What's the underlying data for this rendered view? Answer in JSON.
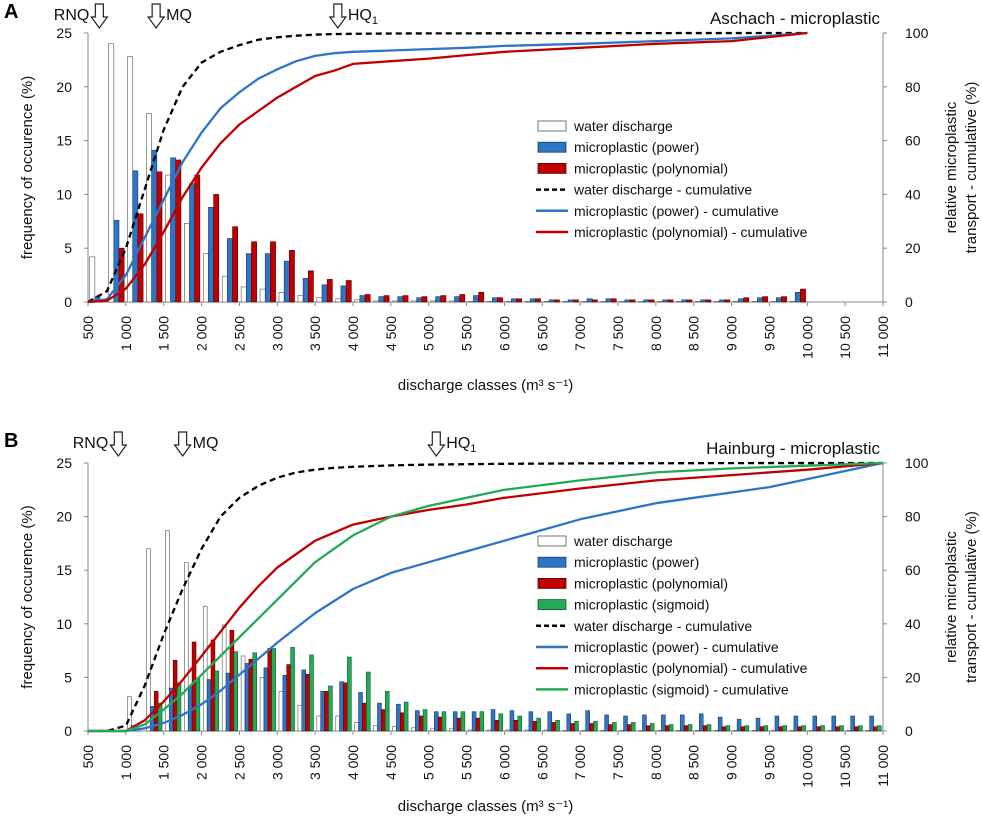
{
  "chart_data": [
    {
      "type": "bar+line",
      "panel_label": "A",
      "title": "Aschach - microplastic",
      "xlabel": "discharge classes (m³ s⁻¹)",
      "ylabel": "frequency of occurence  (%)",
      "y2label_line1": "relative microplastic",
      "y2label_line2": "transport - cumulative (%)",
      "ylim": [
        0,
        25
      ],
      "y2lim": [
        0,
        100
      ],
      "yticks": [
        "0",
        "5",
        "10",
        "15",
        "20",
        "25"
      ],
      "y2ticks": [
        "0",
        "20",
        "40",
        "60",
        "80",
        "100"
      ],
      "xlim": [
        500,
        11000
      ],
      "xtick_labels": [
        "500",
        "1 000",
        "1 500",
        "2 000",
        "2 500",
        "3 000",
        "3 500",
        "4 000",
        "4 500",
        "5 000",
        "5 500",
        "6 000",
        "6 500",
        "7 000",
        "7 500",
        "8 000",
        "8 500",
        "9 000",
        "9 500",
        "10 000",
        "10 500",
        "11 000"
      ],
      "markers": [
        {
          "label": "RNQ",
          "sub": "",
          "x": 650
        },
        {
          "label": "MQ",
          "sub": "",
          "x": 1400
        },
        {
          "label": "HQ",
          "sub": "1",
          "x": 3800
        }
      ],
      "bar_centers": [
        625,
        875,
        1125,
        1375,
        1625,
        1875,
        2125,
        2375,
        2625,
        2875,
        3125,
        3375,
        3625,
        3875,
        4125,
        4375,
        4625,
        4875,
        5125,
        5375,
        5625,
        5875,
        6125,
        6375,
        6625,
        6875,
        7125,
        7375,
        7625,
        7875,
        8125,
        8375,
        8625,
        8875,
        9125,
        9375,
        9625,
        9875
      ],
      "series": [
        {
          "name": "water discharge",
          "kind": "bar",
          "color": "#ffffff",
          "stroke": "#555555",
          "values": [
            4.2,
            24.0,
            22.8,
            17.5,
            11.8,
            7.3,
            4.5,
            2.4,
            1.4,
            1.2,
            0.9,
            0.6,
            0.4,
            0.3,
            0.2,
            0.1,
            0.1,
            0.1,
            0.1,
            0.1,
            0.05,
            0.05,
            0.05,
            0.05,
            0.05,
            0.05,
            0.05,
            0.05,
            0.05,
            0.05,
            0.05,
            0.05,
            0.05,
            0.05,
            0.05,
            0.05,
            0.05,
            0.05
          ]
        },
        {
          "name": "microplastic (power)",
          "kind": "bar",
          "color": "#2e75c5",
          "stroke": "#1a3d66",
          "values": [
            0.5,
            7.6,
            12.2,
            14.1,
            13.4,
            11.0,
            8.8,
            5.9,
            4.5,
            4.5,
            3.8,
            2.2,
            1.6,
            1.5,
            0.6,
            0.5,
            0.5,
            0.4,
            0.5,
            0.5,
            0.6,
            0.4,
            0.3,
            0.3,
            0.2,
            0.2,
            0.3,
            0.3,
            0.2,
            0.2,
            0.2,
            0.2,
            0.2,
            0.2,
            0.3,
            0.4,
            0.4,
            0.9
          ]
        },
        {
          "name": "microplastic (polynomial)",
          "kind": "bar",
          "color": "#c00000",
          "stroke": "#5a0000",
          "values": [
            0.2,
            5.0,
            8.2,
            12.1,
            13.2,
            11.8,
            10.0,
            7.0,
            5.6,
            5.6,
            4.8,
            2.9,
            2.1,
            2.0,
            0.7,
            0.6,
            0.6,
            0.5,
            0.6,
            0.7,
            0.9,
            0.4,
            0.3,
            0.3,
            0.2,
            0.2,
            0.2,
            0.3,
            0.2,
            0.2,
            0.2,
            0.2,
            0.2,
            0.2,
            0.4,
            0.5,
            0.5,
            1.2
          ]
        },
        {
          "name": "water discharge - cumulative",
          "kind": "line",
          "dash": true,
          "color": "#000000",
          "x": [
            500,
            750,
            1000,
            1250,
            1500,
            1750,
            2000,
            2250,
            2500,
            2750,
            3000,
            3250,
            3500,
            3750,
            4000,
            4500,
            5000,
            6000,
            8000,
            10000
          ],
          "values": [
            0,
            4,
            20,
            42,
            64,
            80,
            89,
            93,
            95.5,
            97.5,
            98.4,
            99.0,
            99.4,
            99.6,
            99.7,
            99.8,
            99.85,
            99.9,
            99.95,
            100
          ]
        },
        {
          "name": "microplastic (power) - cumulative",
          "kind": "line",
          "dash": false,
          "color": "#2e75c5",
          "x": [
            500,
            750,
            1000,
            1250,
            1500,
            1750,
            2000,
            2250,
            2500,
            2750,
            3000,
            3250,
            3500,
            3750,
            4000,
            4500,
            5000,
            5500,
            6000,
            7000,
            8000,
            9000,
            10000
          ],
          "values": [
            0,
            1,
            10,
            24,
            38,
            52,
            63,
            72,
            78,
            83,
            86.5,
            89.5,
            91.5,
            92.5,
            93.0,
            93.5,
            94.0,
            94.5,
            95.2,
            96.0,
            97.0,
            98.0,
            100
          ]
        },
        {
          "name": "microplastic (polynomial) - cumulative",
          "kind": "line",
          "dash": false,
          "color": "#c00000",
          "x": [
            500,
            750,
            1000,
            1250,
            1500,
            1750,
            2000,
            2250,
            2500,
            2750,
            3000,
            3250,
            3500,
            3750,
            4000,
            4500,
            5000,
            5500,
            6000,
            7000,
            8000,
            9000,
            10000
          ],
          "values": [
            0,
            0.5,
            5,
            14,
            26,
            39,
            50,
            59,
            66,
            71,
            76,
            80,
            84,
            86,
            88.5,
            89.5,
            90.5,
            91.8,
            93,
            94.5,
            96,
            97,
            100
          ]
        }
      ]
    },
    {
      "type": "bar+line",
      "panel_label": "B",
      "title": "Hainburg - microplastic",
      "xlabel": "discharge classes (m³ s⁻¹)",
      "ylabel": "frequency of occurence  (%)",
      "y2label_line1": "relative microplastic",
      "y2label_line2": "transport - cumulative (%)",
      "ylim": [
        0,
        25
      ],
      "y2lim": [
        0,
        100
      ],
      "yticks": [
        "0",
        "5",
        "10",
        "15",
        "20",
        "25"
      ],
      "y2ticks": [
        "0",
        "20",
        "40",
        "60",
        "80",
        "100"
      ],
      "xlim": [
        500,
        11000
      ],
      "xtick_labels": [
        "500",
        "1 000",
        "1 500",
        "2 000",
        "2 500",
        "3 000",
        "3 500",
        "4 000",
        "4 500",
        "5 000",
        "5 500",
        "6 000",
        "6 500",
        "7 000",
        "7 500",
        "8 000",
        "8 500",
        "9 000",
        "9 500",
        "10 000",
        "10 500",
        "11 000"
      ],
      "markers": [
        {
          "label": "RNQ",
          "sub": "",
          "x": 900
        },
        {
          "label": "MQ",
          "sub": "",
          "x": 1750
        },
        {
          "label": "HQ",
          "sub": "1",
          "x": 5100
        }
      ],
      "bar_centers": [
        625,
        875,
        1125,
        1375,
        1625,
        1875,
        2125,
        2375,
        2625,
        2875,
        3125,
        3375,
        3625,
        3875,
        4125,
        4375,
        4625,
        4875,
        5125,
        5375,
        5625,
        5875,
        6125,
        6375,
        6625,
        6875,
        7125,
        7375,
        7625,
        7875,
        8125,
        8375,
        8625,
        8875,
        9125,
        9375,
        9625,
        9875,
        10125,
        10375,
        10625,
        10875
      ],
      "series": [
        {
          "name": "water discharge",
          "kind": "bar",
          "color": "#ffffff",
          "stroke": "#555555",
          "values": [
            0,
            0,
            3.2,
            17.0,
            18.7,
            15.7,
            11.6,
            9.9,
            7.0,
            5.0,
            3.7,
            2.4,
            1.4,
            1.4,
            0.8,
            0.5,
            0.4,
            0.3,
            0.2,
            0.2,
            0.1,
            0.1,
            0.1,
            0.1,
            0.1,
            0.05,
            0.05,
            0.05,
            0.05,
            0.05,
            0.05,
            0.05,
            0.05,
            0.05,
            0.05,
            0.05,
            0.05,
            0.05,
            0.05,
            0.05,
            0.05,
            0.05
          ]
        },
        {
          "name": "microplastic (power)",
          "kind": "bar",
          "color": "#2e75c5",
          "stroke": "#1a3d66",
          "values": [
            0,
            0,
            0.5,
            2.3,
            4.0,
            4.1,
            4.8,
            5.4,
            6.3,
            5.9,
            5.2,
            5.7,
            3.7,
            4.6,
            3.6,
            2.6,
            2.5,
            1.9,
            1.8,
            1.8,
            1.8,
            2.0,
            1.9,
            1.8,
            1.8,
            1.6,
            1.9,
            1.5,
            1.4,
            1.5,
            1.5,
            1.5,
            1.6,
            1.3,
            1.1,
            1.2,
            1.4,
            1.4,
            1.4,
            1.4,
            1.4,
            1.4
          ]
        },
        {
          "name": "microplastic (polynomial)",
          "kind": "bar",
          "color": "#c00000",
          "stroke": "#5a0000",
          "values": [
            0,
            0,
            0,
            3.7,
            6.6,
            8.3,
            8.5,
            9.4,
            6.7,
            7.7,
            6.2,
            5.3,
            3.7,
            4.5,
            2.6,
            2.0,
            1.7,
            1.4,
            1.3,
            1.2,
            1.2,
            1.0,
            1.0,
            0.9,
            0.8,
            0.7,
            0.7,
            0.6,
            0.6,
            0.5,
            0.5,
            0.5,
            0.5,
            0.4,
            0.4,
            0.4,
            0.4,
            0.4,
            0.4,
            0.4,
            0.4,
            0.4
          ]
        },
        {
          "name": "microplastic (sigmoid)",
          "kind": "bar",
          "color": "#22aa55",
          "stroke": "#0d5a2a",
          "values": [
            0,
            0,
            0,
            2.6,
            4.5,
            4.9,
            5.6,
            7.4,
            7.3,
            7.7,
            7.8,
            7.1,
            4.2,
            6.9,
            5.5,
            3.7,
            2.7,
            2.0,
            1.8,
            1.8,
            1.8,
            1.6,
            1.4,
            1.2,
            1.0,
            0.9,
            0.9,
            0.8,
            0.8,
            0.7,
            0.6,
            0.6,
            0.6,
            0.5,
            0.5,
            0.5,
            0.5,
            0.5,
            0.5,
            0.5,
            0.5,
            0.5
          ]
        },
        {
          "name": "water discharge - cumulative",
          "kind": "line",
          "dash": true,
          "color": "#000000",
          "x": [
            500,
            750,
            1000,
            1250,
            1500,
            1750,
            2000,
            2250,
            2500,
            2750,
            3000,
            3250,
            3500,
            3750,
            4000,
            4500,
            5000,
            6000,
            7000,
            9000,
            11000
          ],
          "values": [
            0,
            0,
            2,
            17,
            36,
            53,
            68,
            80,
            87,
            91.5,
            94.5,
            96.5,
            97.5,
            98.2,
            98.6,
            99.1,
            99.4,
            99.7,
            99.85,
            99.95,
            100
          ]
        },
        {
          "name": "microplastic (power) - cumulative",
          "kind": "line",
          "dash": false,
          "color": "#2e75c5",
          "x": [
            500,
            750,
            1000,
            1250,
            1500,
            1750,
            2000,
            2250,
            2500,
            3000,
            3500,
            4000,
            4500,
            5000,
            5500,
            6000,
            6500,
            7000,
            7500,
            8000,
            8500,
            9000,
            9500,
            10000,
            10500,
            11000
          ],
          "values": [
            0,
            0,
            0,
            1,
            3,
            6,
            10,
            15,
            21,
            33,
            44,
            53,
            59,
            63,
            67,
            71,
            75,
            79,
            82,
            85,
            87,
            89,
            91,
            94,
            97,
            100
          ]
        },
        {
          "name": "microplastic (polynomial) - cumulative",
          "kind": "line",
          "dash": false,
          "color": "#c00000",
          "x": [
            500,
            750,
            1000,
            1250,
            1500,
            1750,
            2000,
            2250,
            2500,
            2750,
            3000,
            3500,
            4000,
            4500,
            5000,
            5500,
            6000,
            7000,
            8000,
            9000,
            10000,
            11000
          ],
          "values": [
            0,
            0,
            0,
            4,
            11,
            19,
            28,
            37,
            46,
            54,
            61,
            71,
            77,
            80,
            82.5,
            84.5,
            87,
            90.5,
            93.5,
            95.5,
            97.5,
            100
          ]
        },
        {
          "name": "microplastic (sigmoid) - cumulative",
          "kind": "line",
          "dash": false,
          "color": "#22aa55",
          "x": [
            500,
            750,
            1000,
            1250,
            1500,
            1750,
            2000,
            2250,
            2500,
            2750,
            3000,
            3500,
            4000,
            4500,
            5000,
            5500,
            6000,
            7000,
            8000,
            9000,
            10000,
            11000
          ],
          "values": [
            0,
            0,
            0,
            2.5,
            8,
            14,
            21,
            28,
            35,
            42,
            49,
            63,
            73,
            80,
            84,
            87,
            90,
            93.5,
            96.5,
            98,
            99,
            100
          ]
        }
      ]
    }
  ]
}
